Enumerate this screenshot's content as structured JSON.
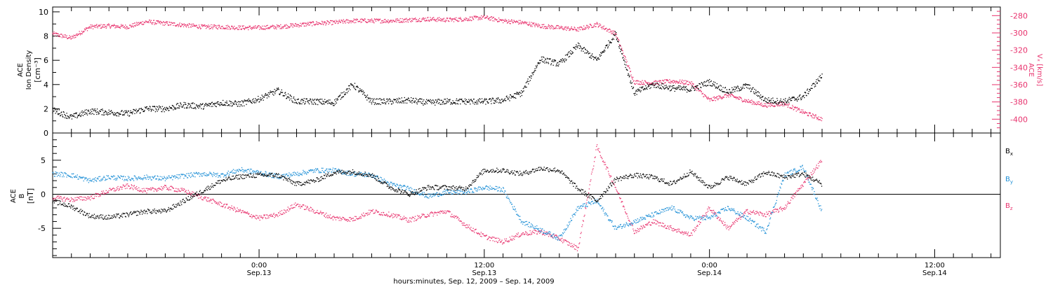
{
  "chart_data": [
    {
      "panel": "top",
      "type": "scatter",
      "left_axis": {
        "label_lines": [
          "ACE",
          "Ion Density",
          "[cm⁻³]"
        ],
        "ylim": [
          0,
          10.4
        ],
        "ticks": [
          "0",
          "2",
          "4",
          "6",
          "8",
          "10"
        ],
        "tick_values": [
          0,
          2,
          4,
          6,
          8,
          10
        ]
      },
      "right_axis": {
        "label_lines": [
          "ACE",
          "Vₓ [km/s]"
        ],
        "ylim": [
          -416,
          -270
        ],
        "ticks": [
          "-280",
          "-300",
          "-320",
          "-340",
          "-360",
          "-380",
          "-400"
        ],
        "tick_values": [
          -280,
          -300,
          -320,
          -340,
          -360,
          -380,
          -400
        ]
      },
      "x_hours": [
        0,
        2,
        4,
        6,
        8,
        10,
        12,
        14,
        16,
        18,
        20,
        22,
        24,
        26,
        28,
        30,
        32,
        34,
        36,
        38,
        40,
        42,
        44,
        46,
        48,
        50,
        52,
        54,
        56,
        58,
        60,
        62,
        64,
        66,
        68,
        70,
        72,
        74,
        76,
        78,
        80,
        82
      ],
      "series": [
        {
          "color": "#000000",
          "values": [
            1.9,
            1.3,
            1.8,
            1.7,
            1.6,
            2.0,
            2.0,
            2.3,
            2.2,
            2.5,
            2.4,
            2.8,
            3.5,
            2.6,
            2.6,
            2.5,
            4.0,
            2.6,
            2.6,
            2.7,
            2.5,
            2.6,
            2.6,
            2.6,
            2.7,
            3.3,
            6.1,
            5.7,
            7.2,
            6.0,
            8.2,
            3.3,
            4.0,
            3.7,
            3.6,
            4.2,
            3.4,
            3.9,
            2.7,
            2.6,
            3.0,
            4.7
          ]
        },
        {
          "color": "#e8336e",
          "values": [
            -301,
            -306,
            -293,
            -292,
            -293,
            -287,
            -289,
            -291,
            -293,
            -293,
            -294,
            -294,
            -293,
            -291,
            -289,
            -288,
            -286,
            -286,
            -286,
            -285,
            -284,
            -285,
            -284,
            -282,
            -286,
            -288,
            -292,
            -294,
            -296,
            -290,
            -301,
            -357,
            -358,
            -356,
            -358,
            -378,
            -372,
            -379,
            -384,
            -382,
            -392,
            -400
          ]
        }
      ]
    },
    {
      "panel": "bottom",
      "type": "scatter",
      "left_axis": {
        "label_lines": [
          "ACE",
          "B",
          "[nT]"
        ],
        "ylim": [
          -9.3,
          9.0
        ],
        "ticks": [
          "5",
          "0",
          "-5"
        ],
        "tick_values": [
          5,
          0,
          -5
        ]
      },
      "x_hours": [
        0,
        2,
        4,
        6,
        8,
        10,
        12,
        14,
        16,
        18,
        20,
        22,
        24,
        26,
        28,
        30,
        32,
        34,
        36,
        38,
        40,
        42,
        44,
        46,
        48,
        50,
        52,
        54,
        56,
        58,
        60,
        62,
        64,
        66,
        68,
        70,
        72,
        74,
        76,
        78,
        80,
        82
      ],
      "series": [
        {
          "name": "Bx",
          "label": "B",
          "sub": "x",
          "color": "#000000",
          "values": [
            -1.0,
            -1.8,
            -3.2,
            -3.4,
            -3.0,
            -2.5,
            -2.5,
            -1.0,
            0.5,
            2.0,
            2.6,
            2.8,
            2.8,
            1.5,
            2.0,
            3.2,
            3.3,
            2.8,
            1.0,
            0.0,
            1.0,
            1.0,
            0.8,
            3.5,
            3.5,
            3.0,
            3.8,
            3.5,
            0.8,
            -1.0,
            2.2,
            2.8,
            2.5,
            1.5,
            3.3,
            1.0,
            2.5,
            1.5,
            3.2,
            2.5,
            3.0,
            1.5
          ]
        },
        {
          "name": "By",
          "label": "B",
          "sub": "y",
          "color": "#1e8fd6",
          "values": [
            3.0,
            2.8,
            2.0,
            2.5,
            2.3,
            2.5,
            2.3,
            2.7,
            3.0,
            2.8,
            3.6,
            3.2,
            2.6,
            3.0,
            3.5,
            3.5,
            3.0,
            2.8,
            1.5,
            0.8,
            -0.3,
            0.3,
            0.3,
            1.0,
            0.7,
            -4.0,
            -5.2,
            -6.5,
            -2.0,
            -1.0,
            -5.0,
            -4.0,
            -3.0,
            -2.0,
            -3.5,
            -3.5,
            -2.0,
            -3.5,
            -5.5,
            2.8,
            4.0,
            -2.5
          ]
        },
        {
          "name": "Bz",
          "label": "B",
          "sub": "z",
          "color": "#e8336e",
          "values": [
            -0.5,
            -0.8,
            -0.5,
            0.5,
            1.2,
            0.5,
            1.0,
            0.5,
            -0.5,
            -1.5,
            -2.5,
            -3.5,
            -3.0,
            -1.5,
            -2.5,
            -3.5,
            -3.7,
            -2.5,
            -3.0,
            -3.8,
            -3.0,
            -2.5,
            -4.5,
            -6.2,
            -7.0,
            -5.8,
            -5.5,
            -6.5,
            -8.0,
            7.0,
            1.0,
            -5.5,
            -4.0,
            -5.0,
            -6.0,
            -2.0,
            -5.0,
            -2.5,
            -3.0,
            -2.0,
            1.5,
            5.0
          ]
        }
      ]
    }
  ],
  "time_axis": {
    "xlim_hours": [
      0,
      101
    ],
    "tick_labels": [
      {
        "hours": 22,
        "time": "0:00",
        "date": "Sep.13"
      },
      {
        "hours": 46,
        "time": "12:00",
        "date": "Sep.13"
      },
      {
        "hours": 70,
        "time": "0:00",
        "date": "Sep.14"
      },
      {
        "hours": 94,
        "time": "12:00",
        "date": "Sep.14"
      }
    ],
    "xlabel": "hours:minutes, Sep. 12, 2009 – Sep. 14, 2009"
  },
  "colors": {
    "density": "#000000",
    "vx": "#e8336e",
    "bx": "#000000",
    "by": "#1e8fd6",
    "bz": "#e8336e",
    "axis": "#000000"
  }
}
